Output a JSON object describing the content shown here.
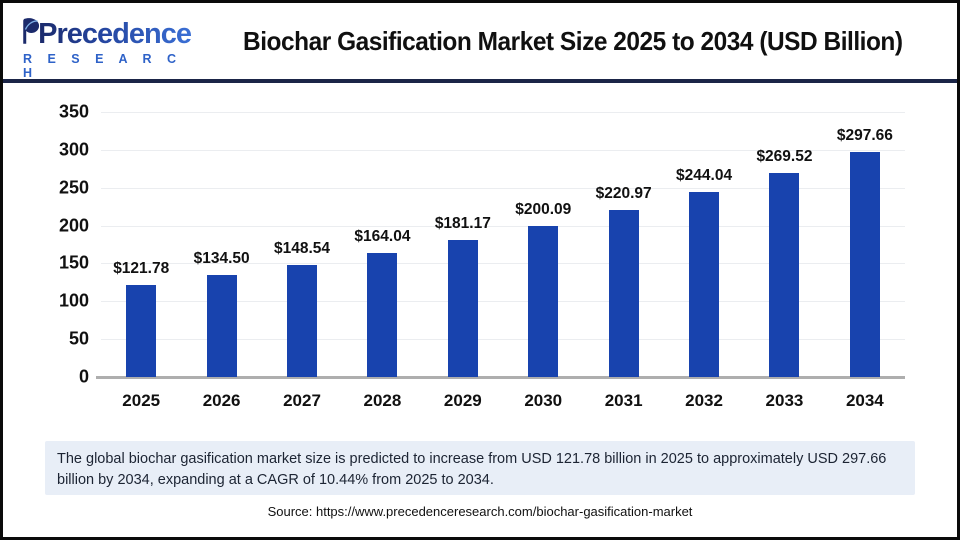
{
  "header": {
    "logo": {
      "line1": "Precedence",
      "line2": "R E S E A R C H"
    }
  },
  "chart_data": {
    "type": "bar",
    "title": "Biochar Gasification Market Size 2025 to 2034 (USD Billion)",
    "categories": [
      "2025",
      "2026",
      "2027",
      "2028",
      "2029",
      "2030",
      "2031",
      "2032",
      "2033",
      "2034"
    ],
    "values": [
      121.78,
      134.5,
      148.54,
      164.04,
      181.17,
      200.09,
      220.97,
      244.04,
      269.52,
      297.66
    ],
    "data_labels": [
      "$121.78",
      "$134.50",
      "$148.54",
      "$164.04",
      "$181.17",
      "$200.09",
      "$220.97",
      "$244.04",
      "$269.52",
      "$297.66"
    ],
    "xlabel": "",
    "ylabel": "",
    "ylim": [
      0,
      350
    ],
    "ytick_step": 50,
    "grid": true,
    "legend": "none",
    "bar_color": "#1843ae"
  },
  "summary": {
    "text": "The global biochar gasification market size is predicted to increase from USD 121.78 billion in 2025 to approximately USD 297.66 billion by 2034, expanding at a CAGR of 10.44% from 2025 to 2034."
  },
  "source": {
    "text": "Source: https://www.precedenceresearch.com/biochar-gasification-market"
  },
  "colors": {
    "bar": "#1843ae",
    "header_rule": "#1b2547",
    "summary_bg": "#e8eef7",
    "gridline": "#ebedf0",
    "axis_line": "#aeaeae",
    "logo_dark": "#1b2a6b",
    "logo_light": "#3a6fd5"
  }
}
